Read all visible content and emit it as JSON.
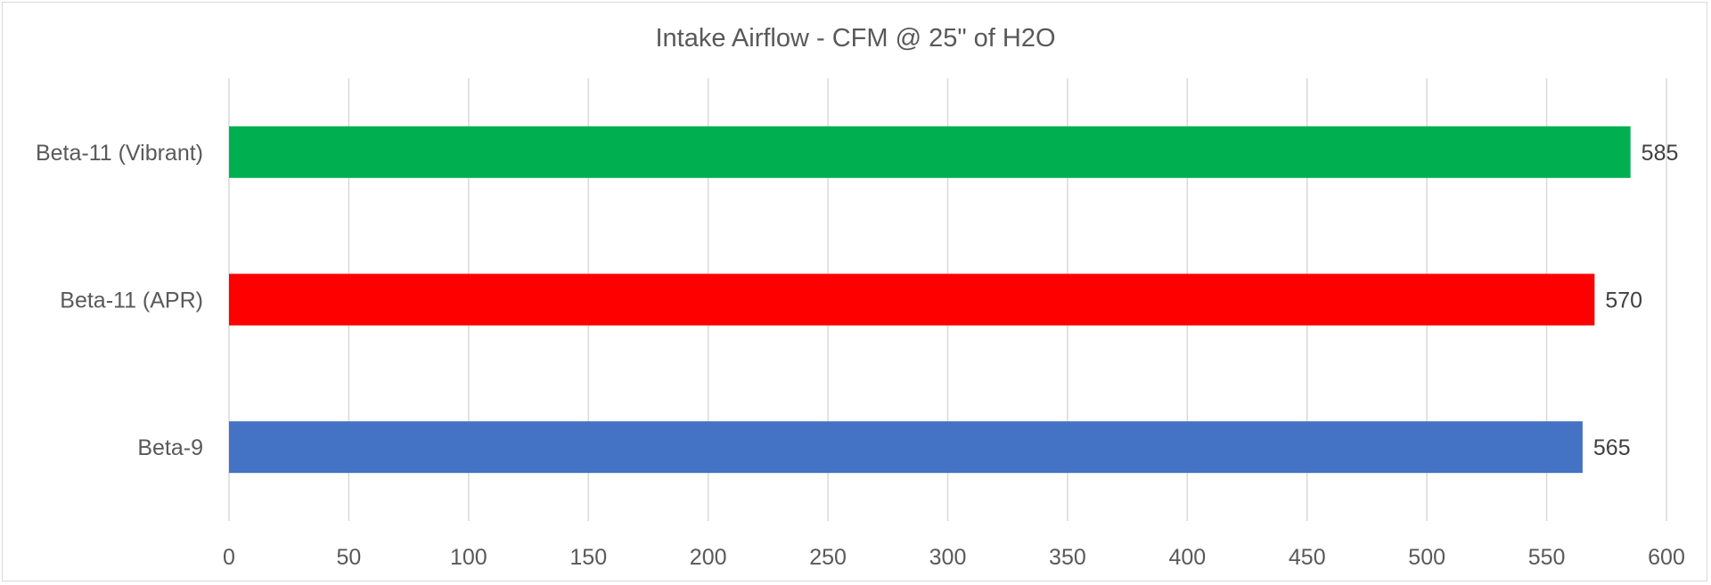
{
  "chart_data": {
    "type": "bar",
    "orientation": "horizontal",
    "title": "Intake Airflow - CFM @ 25\" of H2O",
    "categories": [
      "Beta-11 (Vibrant)",
      "Beta-11 (APR)",
      "Beta-9"
    ],
    "values": [
      585,
      570,
      565
    ],
    "colors": [
      "#00b050",
      "#ff0000",
      "#4472c4"
    ],
    "xlim": [
      0,
      600
    ],
    "xticks": [
      "0",
      "50",
      "100",
      "150",
      "200",
      "250",
      "300",
      "350",
      "400",
      "450",
      "500",
      "550",
      "600"
    ],
    "xtick_values": [
      0,
      50,
      100,
      150,
      200,
      250,
      300,
      350,
      400,
      450,
      500,
      550,
      600
    ],
    "grid": "vertical",
    "legend": "none",
    "data_labels": [
      "585",
      "570",
      "565"
    ]
  }
}
